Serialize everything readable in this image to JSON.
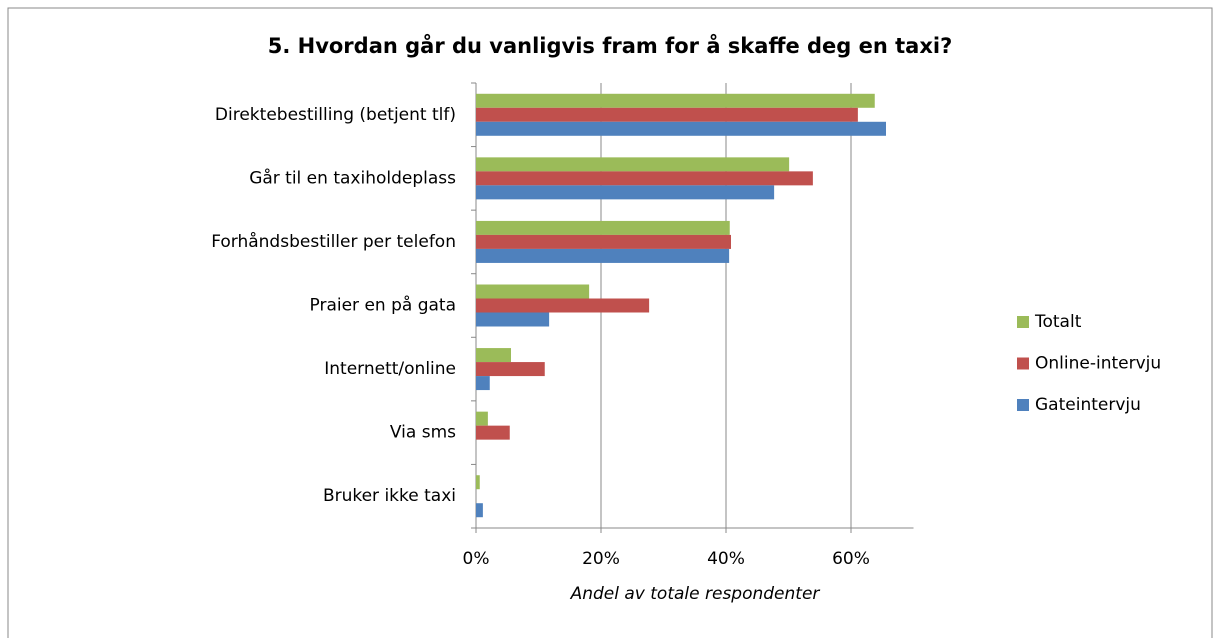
{
  "chart_data": {
    "type": "barh",
    "title": "5. Hvordan går du vanligvis fram for å skaffe deg en taxi?",
    "x_label": "Andel av totale respondenter",
    "categories": [
      "Direktebestilling (betjent tlf)",
      "Går til en taxiholdeplass",
      "Forhåndsbestiller per telefon",
      "Praier en på gata",
      "Internett/online",
      "Via sms",
      "Bruker ikke taxi"
    ],
    "series": [
      {
        "name": "Totalt",
        "color": "#9bbb59",
        "values": [
          63.8,
          50.1,
          40.6,
          18.1,
          5.6,
          1.9,
          0.6
        ]
      },
      {
        "name": "Online-intervju",
        "color": "#c0504d",
        "values": [
          61.1,
          53.9,
          40.8,
          27.7,
          11.0,
          5.4,
          0
        ]
      },
      {
        "name": "Gateintervju",
        "color": "#4f81bd",
        "values": [
          65.6,
          47.7,
          40.5,
          11.7,
          2.2,
          0,
          1.1
        ]
      }
    ],
    "xlim": [
      0,
      70
    ],
    "xticks": [
      {
        "value": 0,
        "label": "0%"
      },
      {
        "value": 20,
        "label": "20%"
      },
      {
        "value": 40,
        "label": "40%"
      },
      {
        "value": 60,
        "label": "60%"
      }
    ],
    "grid": true,
    "legend": "right"
  }
}
